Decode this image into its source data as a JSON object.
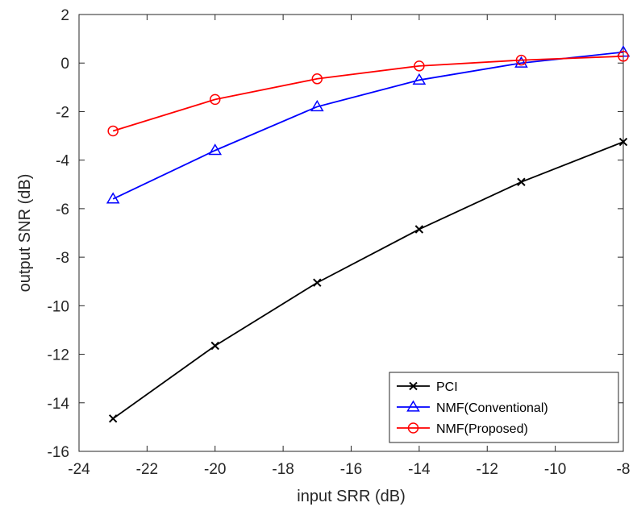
{
  "chart_data": {
    "type": "line",
    "xlabel": "input SRR (dB)",
    "ylabel": "output SNR (dB)",
    "xlim": [
      -24,
      -8
    ],
    "ylim": [
      -16,
      2
    ],
    "xticks": [
      -24,
      -22,
      -20,
      -18,
      -16,
      -14,
      -12,
      -10,
      -8
    ],
    "yticks": [
      2,
      0,
      -2,
      -4,
      -6,
      -8,
      -10,
      -12,
      -14,
      -16
    ],
    "grid": false,
    "legend_position": "bottom-right",
    "x": [
      -23,
      -20,
      -17,
      -14,
      -11,
      -8
    ],
    "series": [
      {
        "name": "PCI",
        "color": "#000000",
        "marker": "x",
        "values": [
          -14.65,
          -11.65,
          -9.05,
          -6.85,
          -4.9,
          -3.25
        ]
      },
      {
        "name": "NMF(Conventional)",
        "color": "#0000ff",
        "marker": "triangle",
        "values": [
          -5.6,
          -3.6,
          -1.8,
          -0.7,
          0.0,
          0.45
        ]
      },
      {
        "name": "NMF(Proposed)",
        "color": "#ff0000",
        "marker": "circle",
        "values": [
          -2.8,
          -1.5,
          -0.65,
          -0.12,
          0.12,
          0.28
        ]
      }
    ]
  }
}
